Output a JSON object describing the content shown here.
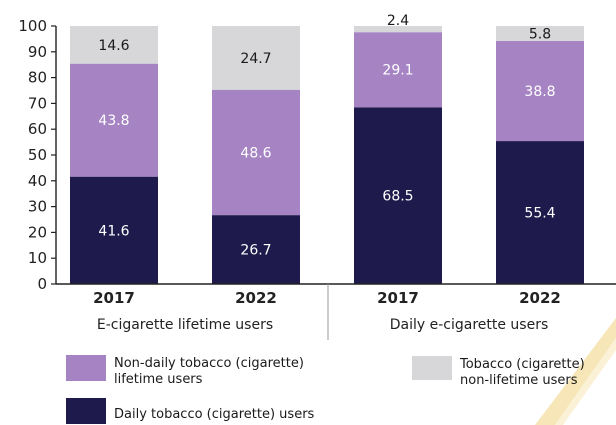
{
  "chart_data": {
    "type": "bar",
    "stacked": true,
    "ylim": [
      0,
      100
    ],
    "y_ticks": [
      0,
      10,
      20,
      30,
      40,
      50,
      60,
      70,
      80,
      90,
      100
    ],
    "grid": false,
    "legend_position": "bottom",
    "groups": [
      {
        "label": "E-cigarette lifetime users",
        "categories": [
          "2017",
          "2022"
        ]
      },
      {
        "label": "Daily e-cigarette users",
        "categories": [
          "2017",
          "2022"
        ]
      }
    ],
    "categories": [
      "2017",
      "2022",
      "2017",
      "2022"
    ],
    "series": [
      {
        "name": "Daily tobacco (cigarette) users",
        "color": "#1e1a4c",
        "values": [
          41.6,
          26.7,
          68.5,
          55.4
        ]
      },
      {
        "name": "Non-daily tobacco (cigarette) lifetime users",
        "color": "#a683c3",
        "values": [
          43.8,
          48.6,
          29.1,
          38.8
        ]
      },
      {
        "name": "Tobacco (cigarette) non-lifetime users",
        "color": "#d7d7d9",
        "values": [
          14.6,
          24.7,
          2.4,
          5.8
        ]
      }
    ]
  },
  "colors": {
    "dark_bar": "#1e1a4c",
    "purple_bar": "#a683c3",
    "grey_bar": "#d7d7d9",
    "label_on_dark": "#ffffff",
    "label_on_light": "#1a1a1a",
    "axis": "#222222"
  },
  "legend": {
    "non_daily_line1": "Non-daily tobacco (cigarette)",
    "non_daily_line2": "lifetime users",
    "daily_label": "Daily tobacco (cigarette) users",
    "non_lifetime_line1": "Tobacco (cigarette)",
    "non_lifetime_line2": "non-lifetime users"
  }
}
